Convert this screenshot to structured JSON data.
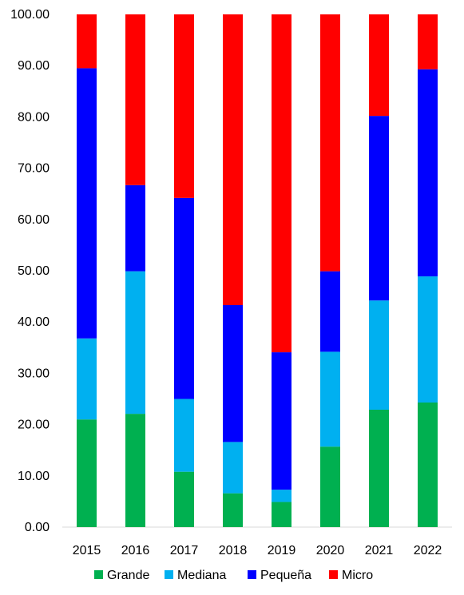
{
  "chart_data": {
    "type": "bar",
    "stacked": true,
    "percent_scale": true,
    "categories": [
      "2015",
      "2016",
      "2017",
      "2018",
      "2019",
      "2020",
      "2021",
      "2022"
    ],
    "series": [
      {
        "name": "Grande",
        "color": "#00b050",
        "values": [
          21.0,
          22.1,
          10.8,
          6.6,
          4.9,
          15.7,
          22.9,
          24.3
        ]
      },
      {
        "name": "Mediana",
        "color": "#00b0f0",
        "values": [
          15.8,
          27.8,
          14.2,
          10.0,
          2.4,
          18.5,
          21.3,
          24.6
        ]
      },
      {
        "name": "Pequeña",
        "color": "#0000ff",
        "values": [
          52.7,
          16.8,
          39.2,
          26.7,
          26.8,
          15.7,
          36.0,
          40.4
        ]
      },
      {
        "name": "Micro",
        "color": "#ff0000",
        "values": [
          10.5,
          33.3,
          35.8,
          56.7,
          65.9,
          50.1,
          19.8,
          10.7
        ]
      }
    ],
    "ylim": [
      0,
      100
    ],
    "yticks": [
      "0.00",
      "10.00",
      "20.00",
      "30.00",
      "40.00",
      "50.00",
      "60.00",
      "70.00",
      "80.00",
      "90.00",
      "100.00"
    ],
    "grid": false,
    "legend_position": "bottom"
  }
}
